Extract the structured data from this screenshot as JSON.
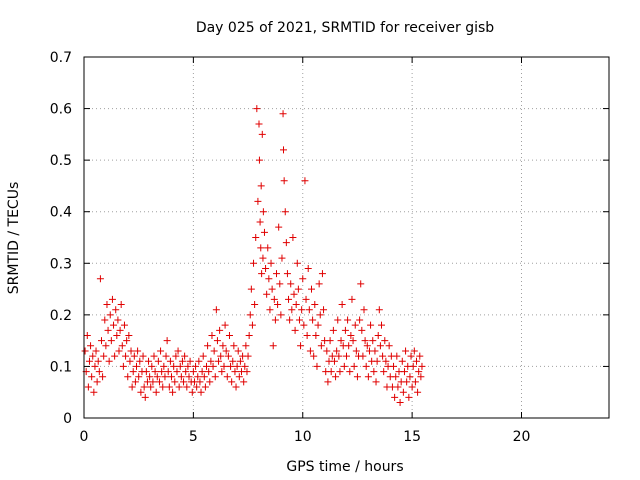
{
  "chart_data": {
    "type": "scatter",
    "title": "Day 025 of 2021, SRMTID for receiver gisb",
    "xlabel": "GPS time / hours",
    "ylabel": "SRMTID / TECUs",
    "xlim": [
      0,
      24
    ],
    "ylim": [
      0,
      0.7
    ],
    "xticks": [
      0,
      5,
      10,
      15,
      20
    ],
    "xtick_labels": [
      "0",
      "5",
      "10",
      "15",
      "20"
    ],
    "yticks": [
      0,
      0.1,
      0.2,
      0.3,
      0.4,
      0.5,
      0.6,
      0.7
    ],
    "ytick_labels": [
      "0",
      "0.1",
      "0.2",
      "0.3",
      "0.4",
      "0.5",
      "0.6",
      "0.7"
    ],
    "grid": true,
    "marker": "+",
    "marker_color": "#e00000",
    "series": [
      {
        "name": "SRMTID",
        "points": [
          [
            0.05,
            0.13
          ],
          [
            0.1,
            0.09
          ],
          [
            0.15,
            0.16
          ],
          [
            0.2,
            0.06
          ],
          [
            0.25,
            0.11
          ],
          [
            0.3,
            0.14
          ],
          [
            0.35,
            0.08
          ],
          [
            0.4,
            0.12
          ],
          [
            0.45,
            0.05
          ],
          [
            0.5,
            0.1
          ],
          [
            0.55,
            0.13
          ],
          [
            0.6,
            0.07
          ],
          [
            0.65,
            0.11
          ],
          [
            0.7,
            0.09
          ],
          [
            0.75,
            0.27
          ],
          [
            0.8,
            0.15
          ],
          [
            0.85,
            0.08
          ],
          [
            0.9,
            0.12
          ],
          [
            0.95,
            0.19
          ],
          [
            1.0,
            0.14
          ],
          [
            1.05,
            0.22
          ],
          [
            1.1,
            0.17
          ],
          [
            1.15,
            0.11
          ],
          [
            1.2,
            0.2
          ],
          [
            1.25,
            0.15
          ],
          [
            1.3,
            0.23
          ],
          [
            1.35,
            0.18
          ],
          [
            1.4,
            0.12
          ],
          [
            1.45,
            0.21
          ],
          [
            1.5,
            0.16
          ],
          [
            1.55,
            0.19
          ],
          [
            1.6,
            0.13
          ],
          [
            1.65,
            0.17
          ],
          [
            1.7,
            0.22
          ],
          [
            1.75,
            0.14
          ],
          [
            1.8,
            0.1
          ],
          [
            1.85,
            0.18
          ],
          [
            1.9,
            0.12
          ],
          [
            1.95,
            0.15
          ],
          [
            2.0,
            0.08
          ],
          [
            2.05,
            0.16
          ],
          [
            2.1,
            0.11
          ],
          [
            2.15,
            0.13
          ],
          [
            2.2,
            0.06
          ],
          [
            2.25,
            0.09
          ],
          [
            2.3,
            0.12
          ],
          [
            2.35,
            0.07
          ],
          [
            2.4,
            0.1
          ],
          [
            2.45,
            0.13
          ],
          [
            2.5,
            0.08
          ],
          [
            2.55,
            0.11
          ],
          [
            2.6,
            0.05
          ],
          [
            2.65,
            0.09
          ],
          [
            2.7,
            0.12
          ],
          [
            2.75,
            0.06
          ],
          [
            2.8,
            0.04
          ],
          [
            2.85,
            0.09
          ],
          [
            2.9,
            0.07
          ],
          [
            2.95,
            0.11
          ],
          [
            3.0,
            0.08
          ],
          [
            3.05,
            0.06
          ],
          [
            3.1,
            0.1
          ],
          [
            3.15,
            0.07
          ],
          [
            3.2,
            0.12
          ],
          [
            3.25,
            0.09
          ],
          [
            3.3,
            0.05
          ],
          [
            3.35,
            0.08
          ],
          [
            3.4,
            0.11
          ],
          [
            3.45,
            0.07
          ],
          [
            3.5,
            0.13
          ],
          [
            3.55,
            0.09
          ],
          [
            3.6,
            0.06
          ],
          [
            3.65,
            0.1
          ],
          [
            3.7,
            0.08
          ],
          [
            3.75,
            0.12
          ],
          [
            3.8,
            0.15
          ],
          [
            3.85,
            0.09
          ],
          [
            3.9,
            0.06
          ],
          [
            3.95,
            0.11
          ],
          [
            4.0,
            0.08
          ],
          [
            4.05,
            0.05
          ],
          [
            4.1,
            0.1
          ],
          [
            4.15,
            0.07
          ],
          [
            4.2,
            0.12
          ],
          [
            4.25,
            0.09
          ],
          [
            4.3,
            0.13
          ],
          [
            4.35,
            0.06
          ],
          [
            4.4,
            0.1
          ],
          [
            4.45,
            0.08
          ],
          [
            4.5,
            0.11
          ],
          [
            4.55,
            0.07
          ],
          [
            4.6,
            0.12
          ],
          [
            4.65,
            0.09
          ],
          [
            4.7,
            0.06
          ],
          [
            4.75,
            0.1
          ],
          [
            4.8,
            0.08
          ],
          [
            4.85,
            0.11
          ],
          [
            4.9,
            0.07
          ],
          [
            4.95,
            0.05
          ],
          [
            5.0,
            0.09
          ],
          [
            5.05,
            0.07
          ],
          [
            5.1,
            0.1
          ],
          [
            5.15,
            0.06
          ],
          [
            5.2,
            0.08
          ],
          [
            5.25,
            0.11
          ],
          [
            5.3,
            0.07
          ],
          [
            5.35,
            0.05
          ],
          [
            5.4,
            0.09
          ],
          [
            5.45,
            0.12
          ],
          [
            5.5,
            0.08
          ],
          [
            5.55,
            0.06
          ],
          [
            5.6,
            0.1
          ],
          [
            5.65,
            0.14
          ],
          [
            5.7,
            0.09
          ],
          [
            5.75,
            0.07
          ],
          [
            5.8,
            0.11
          ],
          [
            5.85,
            0.16
          ],
          [
            5.9,
            0.1
          ],
          [
            5.95,
            0.13
          ],
          [
            6.0,
            0.08
          ],
          [
            6.05,
            0.21
          ],
          [
            6.1,
            0.15
          ],
          [
            6.15,
            0.11
          ],
          [
            6.2,
            0.17
          ],
          [
            6.25,
            0.12
          ],
          [
            6.3,
            0.09
          ],
          [
            6.35,
            0.14
          ],
          [
            6.4,
            0.1
          ],
          [
            6.45,
            0.18
          ],
          [
            6.5,
            0.13
          ],
          [
            6.55,
            0.08
          ],
          [
            6.6,
            0.12
          ],
          [
            6.65,
            0.16
          ],
          [
            6.7,
            0.1
          ],
          [
            6.75,
            0.07
          ],
          [
            6.8,
            0.11
          ],
          [
            6.85,
            0.14
          ],
          [
            6.9,
            0.09
          ],
          [
            6.95,
            0.06
          ],
          [
            7.0,
            0.1
          ],
          [
            7.05,
            0.13
          ],
          [
            7.1,
            0.08
          ],
          [
            7.15,
            0.11
          ],
          [
            7.2,
            0.09
          ],
          [
            7.25,
            0.12
          ],
          [
            7.3,
            0.07
          ],
          [
            7.35,
            0.1
          ],
          [
            7.4,
            0.14
          ],
          [
            7.45,
            0.09
          ],
          [
            7.5,
            0.12
          ],
          [
            7.55,
            0.16
          ],
          [
            7.6,
            0.2
          ],
          [
            7.65,
            0.25
          ],
          [
            7.7,
            0.18
          ],
          [
            7.75,
            0.3
          ],
          [
            7.8,
            0.22
          ],
          [
            7.85,
            0.35
          ],
          [
            7.9,
            0.6
          ],
          [
            7.95,
            0.42
          ],
          [
            8.0,
            0.57
          ],
          [
            8.02,
            0.5
          ],
          [
            8.05,
            0.38
          ],
          [
            8.08,
            0.33
          ],
          [
            8.1,
            0.45
          ],
          [
            8.12,
            0.28
          ],
          [
            8.15,
            0.55
          ],
          [
            8.18,
            0.31
          ],
          [
            8.2,
            0.4
          ],
          [
            8.25,
            0.36
          ],
          [
            8.3,
            0.29
          ],
          [
            8.35,
            0.24
          ],
          [
            8.4,
            0.33
          ],
          [
            8.45,
            0.27
          ],
          [
            8.5,
            0.21
          ],
          [
            8.55,
            0.3
          ],
          [
            8.6,
            0.25
          ],
          [
            8.65,
            0.14
          ],
          [
            8.7,
            0.23
          ],
          [
            8.75,
            0.19
          ],
          [
            8.8,
            0.28
          ],
          [
            8.85,
            0.22
          ],
          [
            8.9,
            0.37
          ],
          [
            8.95,
            0.26
          ],
          [
            9.0,
            0.2
          ],
          [
            9.05,
            0.31
          ],
          [
            9.1,
            0.59
          ],
          [
            9.12,
            0.52
          ],
          [
            9.15,
            0.46
          ],
          [
            9.2,
            0.4
          ],
          [
            9.25,
            0.34
          ],
          [
            9.3,
            0.28
          ],
          [
            9.35,
            0.23
          ],
          [
            9.4,
            0.19
          ],
          [
            9.45,
            0.26
          ],
          [
            9.5,
            0.21
          ],
          [
            9.55,
            0.35
          ],
          [
            9.6,
            0.24
          ],
          [
            9.65,
            0.17
          ],
          [
            9.7,
            0.22
          ],
          [
            9.75,
            0.3
          ],
          [
            9.8,
            0.25
          ],
          [
            9.85,
            0.19
          ],
          [
            9.9,
            0.14
          ],
          [
            9.95,
            0.21
          ],
          [
            10.0,
            0.27
          ],
          [
            10.05,
            0.18
          ],
          [
            10.1,
            0.46
          ],
          [
            10.15,
            0.23
          ],
          [
            10.2,
            0.16
          ],
          [
            10.25,
            0.29
          ],
          [
            10.3,
            0.21
          ],
          [
            10.35,
            0.13
          ],
          [
            10.4,
            0.25
          ],
          [
            10.45,
            0.19
          ],
          [
            10.5,
            0.12
          ],
          [
            10.55,
            0.22
          ],
          [
            10.6,
            0.16
          ],
          [
            10.65,
            0.1
          ],
          [
            10.7,
            0.18
          ],
          [
            10.75,
            0.26
          ],
          [
            10.8,
            0.2
          ],
          [
            10.85,
            0.14
          ],
          [
            10.9,
            0.28
          ],
          [
            10.95,
            0.21
          ],
          [
            11.0,
            0.15
          ],
          [
            11.05,
            0.09
          ],
          [
            11.1,
            0.13
          ],
          [
            11.15,
            0.07
          ],
          [
            11.2,
            0.11
          ],
          [
            11.25,
            0.15
          ],
          [
            11.3,
            0.09
          ],
          [
            11.35,
            0.12
          ],
          [
            11.4,
            0.17
          ],
          [
            11.45,
            0.11
          ],
          [
            11.5,
            0.08
          ],
          [
            11.55,
            0.13
          ],
          [
            11.6,
            0.19
          ],
          [
            11.65,
            0.12
          ],
          [
            11.7,
            0.09
          ],
          [
            11.75,
            0.15
          ],
          [
            11.8,
            0.22
          ],
          [
            11.85,
            0.14
          ],
          [
            11.9,
            0.1
          ],
          [
            11.95,
            0.17
          ],
          [
            12.0,
            0.12
          ],
          [
            12.05,
            0.19
          ],
          [
            12.1,
            0.14
          ],
          [
            12.15,
            0.09
          ],
          [
            12.2,
            0.16
          ],
          [
            12.25,
            0.23
          ],
          [
            12.3,
            0.15
          ],
          [
            12.35,
            0.1
          ],
          [
            12.4,
            0.18
          ],
          [
            12.45,
            0.13
          ],
          [
            12.5,
            0.08
          ],
          [
            12.55,
            0.12
          ],
          [
            12.6,
            0.19
          ],
          [
            12.65,
            0.26
          ],
          [
            12.7,
            0.17
          ],
          [
            12.75,
            0.12
          ],
          [
            12.8,
            0.21
          ],
          [
            12.85,
            0.15
          ],
          [
            12.9,
            0.1
          ],
          [
            12.95,
            0.14
          ],
          [
            13.0,
            0.08
          ],
          [
            13.05,
            0.13
          ],
          [
            13.1,
            0.18
          ],
          [
            13.15,
            0.11
          ],
          [
            13.2,
            0.15
          ],
          [
            13.25,
            0.09
          ],
          [
            13.3,
            0.13
          ],
          [
            13.35,
            0.07
          ],
          [
            13.4,
            0.11
          ],
          [
            13.45,
            0.16
          ],
          [
            13.5,
            0.21
          ],
          [
            13.55,
            0.14
          ],
          [
            13.6,
            0.18
          ],
          [
            13.65,
            0.12
          ],
          [
            13.7,
            0.09
          ],
          [
            13.75,
            0.15
          ],
          [
            13.8,
            0.11
          ],
          [
            13.85,
            0.06
          ],
          [
            13.9,
            0.1
          ],
          [
            13.95,
            0.14
          ],
          [
            14.0,
            0.08
          ],
          [
            14.05,
            0.12
          ],
          [
            14.1,
            0.06
          ],
          [
            14.15,
            0.1
          ],
          [
            14.2,
            0.04
          ],
          [
            14.25,
            0.08
          ],
          [
            14.3,
            0.12
          ],
          [
            14.35,
            0.06
          ],
          [
            14.4,
            0.09
          ],
          [
            14.45,
            0.03
          ],
          [
            14.5,
            0.07
          ],
          [
            14.55,
            0.11
          ],
          [
            14.6,
            0.05
          ],
          [
            14.65,
            0.09
          ],
          [
            14.7,
            0.13
          ],
          [
            14.75,
            0.07
          ],
          [
            14.8,
            0.1
          ],
          [
            14.85,
            0.04
          ],
          [
            14.9,
            0.08
          ],
          [
            14.95,
            0.12
          ],
          [
            15.0,
            0.06
          ],
          [
            15.05,
            0.1
          ],
          [
            15.1,
            0.13
          ],
          [
            15.15,
            0.07
          ],
          [
            15.2,
            0.11
          ],
          [
            15.25,
            0.05
          ],
          [
            15.3,
            0.09
          ],
          [
            15.35,
            0.12
          ],
          [
            15.4,
            0.08
          ],
          [
            15.45,
            0.1
          ]
        ]
      }
    ]
  }
}
